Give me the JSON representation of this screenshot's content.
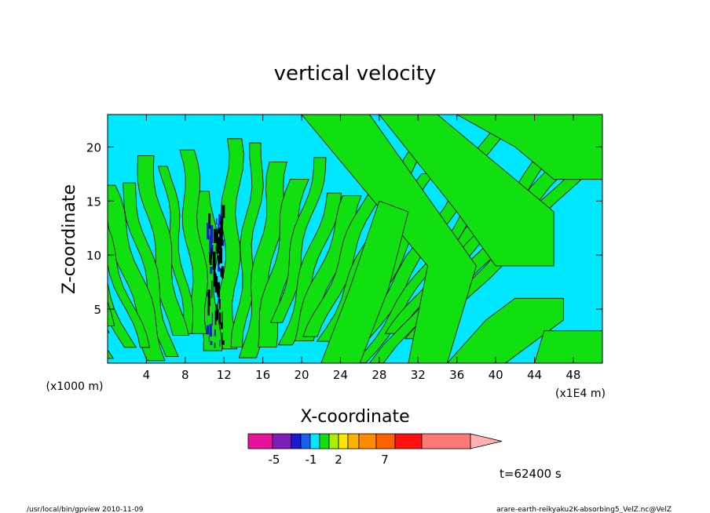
{
  "chart_data": {
    "type": "heatmap",
    "title": "vertical velocity",
    "xlabel": "X-coordinate",
    "ylabel": "Z-coordinate",
    "x_unit_label": "(x1E4 m)",
    "y_unit_label": "(x1000 m)",
    "xlim": [
      0,
      51
    ],
    "ylim": [
      0,
      23
    ],
    "x_ticks": [
      "4",
      "8",
      "12",
      "16",
      "20",
      "24",
      "28",
      "32",
      "36",
      "40",
      "44",
      "48"
    ],
    "y_ticks": [
      "5",
      "10",
      "15",
      "20"
    ],
    "colorbar": {
      "labels": [
        "-5",
        "-1",
        "2",
        "7"
      ],
      "colors": [
        "#e8119c",
        "#7b1fb8",
        "#1a1ad4",
        "#1560f0",
        "#00e8ff",
        "#10e010",
        "#a8f000",
        "#ffe800",
        "#ffb000",
        "#ff8c00",
        "#ff6000",
        "#ff1010",
        "#ff7878",
        "#ffb0b0"
      ]
    },
    "field_colors": {
      "background": "#00e8ff",
      "positive": "#10e010",
      "strong": "#000000"
    },
    "time_label": "t=62400 s",
    "footer_left": "/usr/local/bin/gpview  2010-11-09",
    "footer_right": "arare-earth-reikyaku2K-absorbing5_VelZ.nc@VelZ"
  }
}
